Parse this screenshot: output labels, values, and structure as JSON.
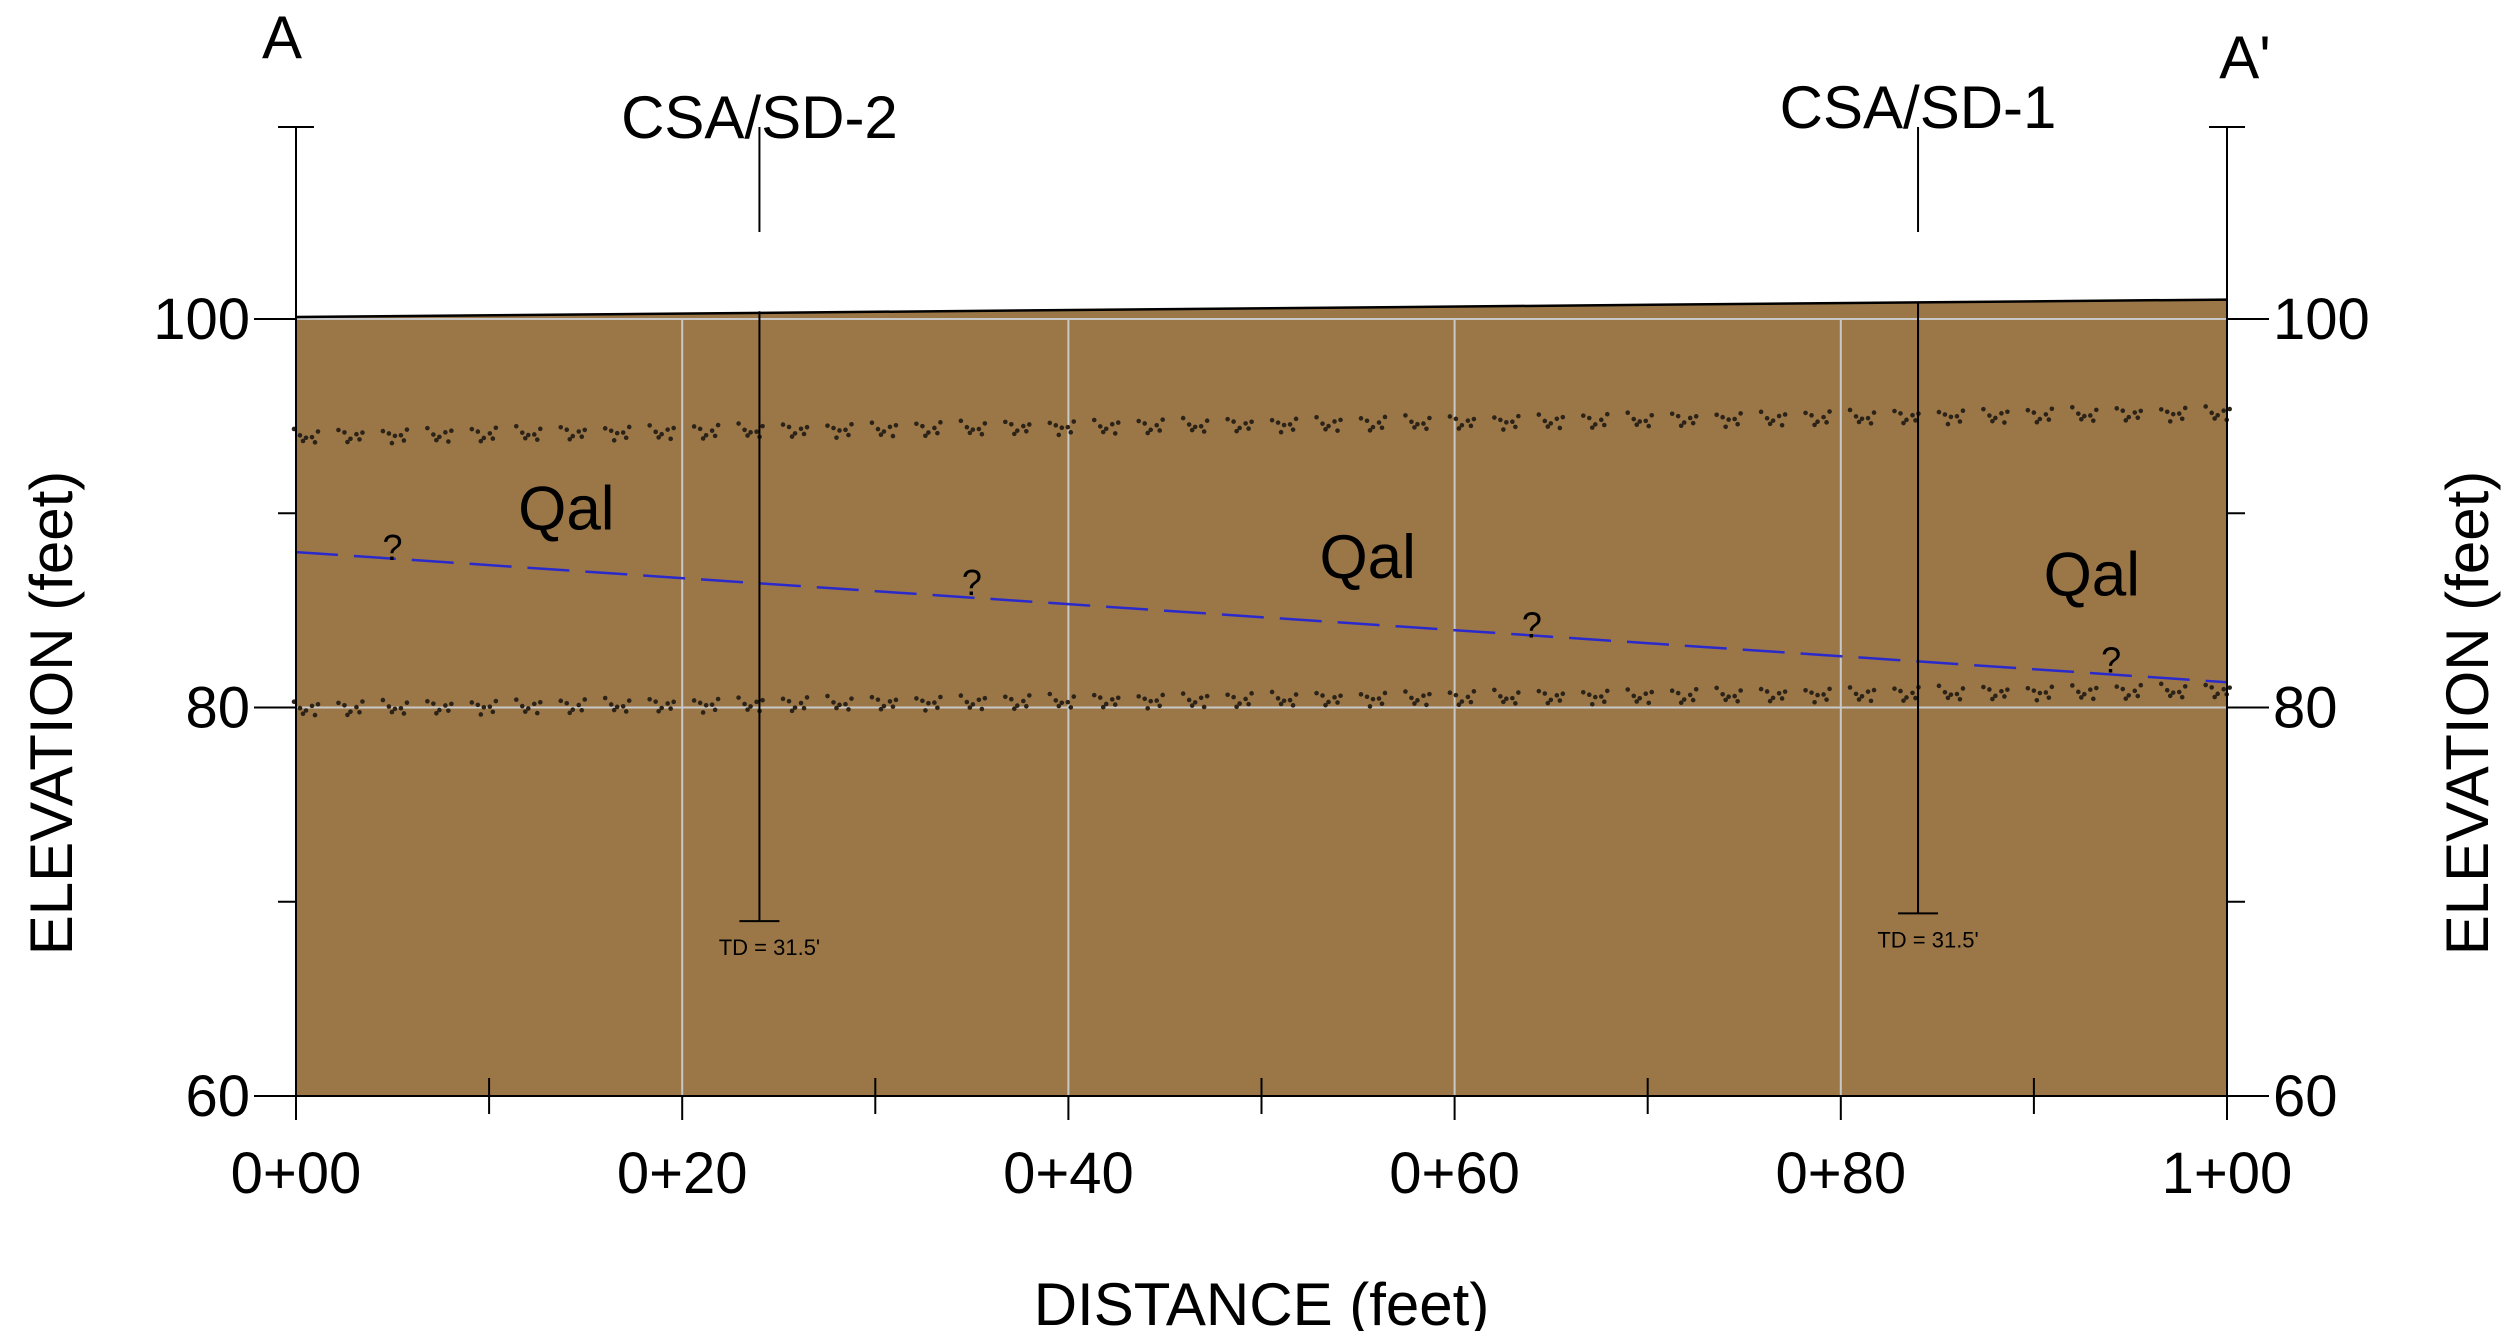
{
  "corners": {
    "left": "A",
    "right": "A'"
  },
  "axes": {
    "x_label": "DISTANCE (feet)",
    "y_label_left": "ELEVATION (feet)",
    "y_label_right": "ELEVATION (feet)"
  },
  "chart_data": {
    "type": "cross-section",
    "x_ticks": [
      {
        "value": 0,
        "label": "0+00"
      },
      {
        "value": 20,
        "label": "0+20"
      },
      {
        "value": 40,
        "label": "0+40"
      },
      {
        "value": 60,
        "label": "0+60"
      },
      {
        "value": 80,
        "label": "0+80"
      },
      {
        "value": 100,
        "label": "1+00"
      }
    ],
    "y_ticks": [
      {
        "value": 60,
        "label": "60"
      },
      {
        "value": 80,
        "label": "80"
      },
      {
        "value": 100,
        "label": "100"
      }
    ],
    "xlim": [
      0,
      100
    ],
    "ylim": [
      60,
      110
    ],
    "grid": true,
    "ground_surface": [
      {
        "x": 0,
        "y": 100.1
      },
      {
        "x": 100,
        "y": 101.0
      }
    ],
    "borings": [
      {
        "name": "CSA/SD-2",
        "x": 24,
        "top": 100.4,
        "bottom": 69.0,
        "td_label": "TD = 31.5'"
      },
      {
        "name": "CSA/SD-1",
        "x": 84,
        "top": 100.9,
        "bottom": 69.4,
        "td_label": "TD = 31.5'"
      }
    ],
    "unit_labels": [
      {
        "text": "Qal",
        "x": 14,
        "y": 90.2
      },
      {
        "text": "Qal",
        "x": 55.5,
        "y": 87.7
      },
      {
        "text": "Qal",
        "x": 93,
        "y": 86.8
      }
    ],
    "gravel_layers": [
      {
        "start": {
          "x": 0,
          "y": 94.0
        },
        "end": {
          "x": 99,
          "y": 95.2
        }
      },
      {
        "start": {
          "x": 0,
          "y": 80.0
        },
        "end": {
          "x": 99,
          "y": 80.9
        }
      }
    ],
    "water_table": {
      "style": "dashed",
      "color": "#2a2acc",
      "start": {
        "x": 0,
        "y": 88.0
      },
      "end": {
        "x": 100,
        "y": 81.3
      },
      "markers": [
        {
          "text": "?",
          "x": 5,
          "y": 87.6
        },
        {
          "text": "?",
          "x": 35,
          "y": 85.8
        },
        {
          "text": "?",
          "x": 64,
          "y": 83.6
        },
        {
          "text": "?",
          "x": 94,
          "y": 81.8
        }
      ]
    },
    "colors": {
      "fill": "#9b7748",
      "grid": "#c8c8c8",
      "outline": "#000000"
    }
  }
}
